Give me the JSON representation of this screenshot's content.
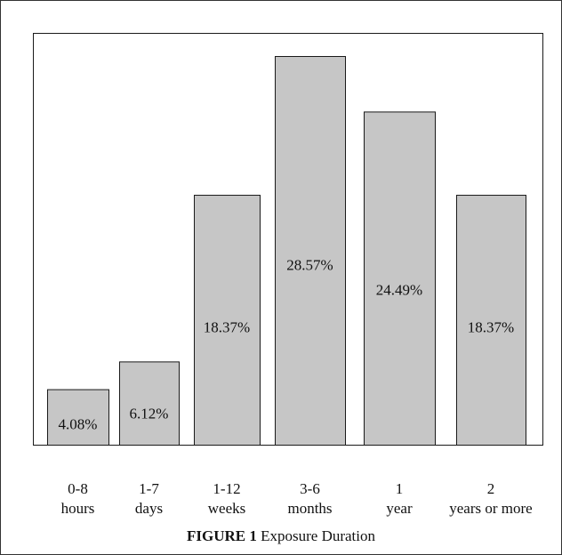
{
  "caption": {
    "label": "FIGURE 1",
    "title": "Exposure Duration"
  },
  "chart_data": {
    "type": "bar",
    "title": "Exposure Duration",
    "xlabel": "",
    "ylabel": "",
    "categories": [
      [
        "0-8",
        "hours"
      ],
      [
        "1-7",
        "days"
      ],
      [
        "1-12",
        "weeks"
      ],
      [
        "3-6",
        "months"
      ],
      [
        "1",
        "year"
      ],
      [
        "2",
        "years or more"
      ]
    ],
    "values": [
      4.08,
      6.12,
      18.37,
      28.57,
      24.49,
      18.37
    ],
    "value_labels": [
      "4.08%",
      "6.12%",
      "18.37%",
      "28.57%",
      "24.49%",
      "18.37%"
    ],
    "ylim": [
      0,
      28.57
    ],
    "grid": false,
    "legend": "none",
    "colors": {
      "bar_fill": "#c6c6c6",
      "bar_stroke": "#1a1a1a"
    }
  }
}
